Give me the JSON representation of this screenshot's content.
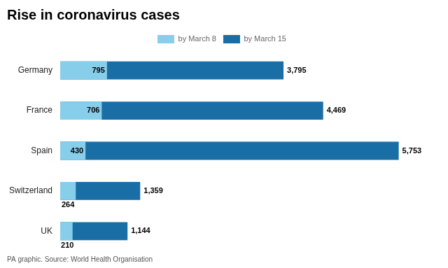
{
  "chart_data": {
    "type": "bar",
    "orientation": "horizontal",
    "title": "Rise in coronavirus cases",
    "footer": "PA graphic. Source: World Health Organisation",
    "categories": [
      "Germany",
      "France",
      "Spain",
      "Switzerland",
      "UK"
    ],
    "series": [
      {
        "name": "by March 8",
        "color": "#87CEEB",
        "values": [
          795,
          706,
          430,
          264,
          210
        ]
      },
      {
        "name": "by March 15",
        "color": "#1A6EA6",
        "values": [
          3795,
          4469,
          5753,
          1359,
          1144
        ],
        "value_labels": [
          "3,795",
          "4,469",
          "5,753",
          "1,359",
          "1,144"
        ]
      }
    ],
    "xlim": [
      0,
      6400
    ],
    "grid": false,
    "legend": "top",
    "data_labels": true,
    "tick_labels": "y"
  }
}
